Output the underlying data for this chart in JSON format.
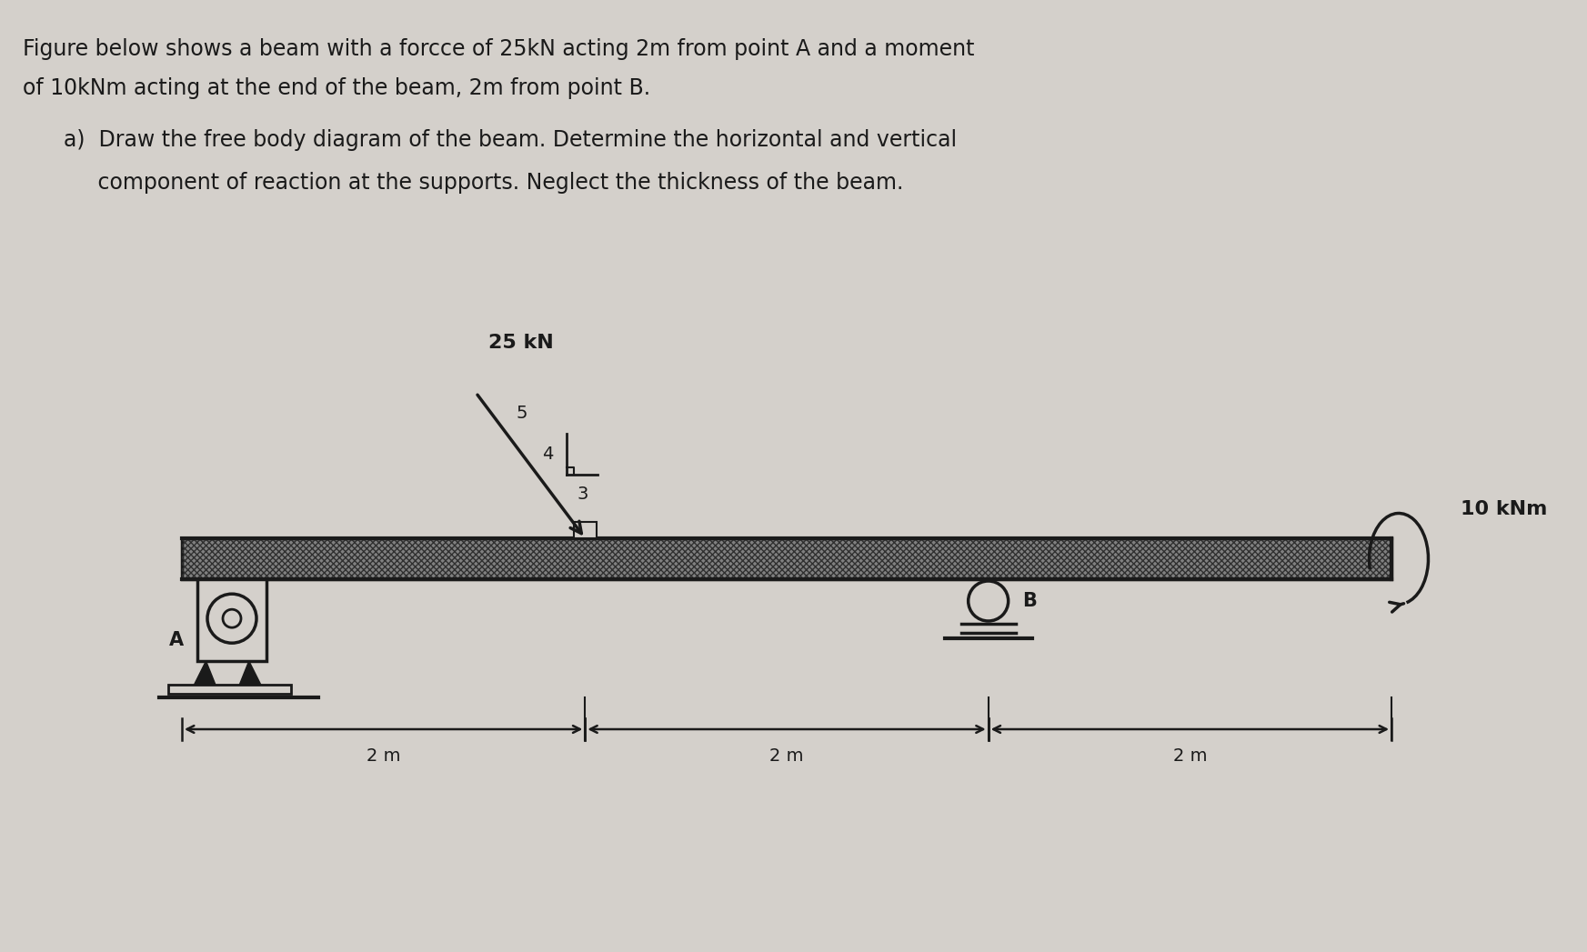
{
  "bg_color": "#d4d0cb",
  "title_line1": "Figure below shows a beam with a forcce of 25kN acting 2m from point A and a moment",
  "title_line2": "of 10kNm acting at the end of the beam, 2m from point B.",
  "q_line1": "a)  Draw the free body diagram of the beam. Determine the horizontal and vertical",
  "q_line2": "     component of reaction at the supports. Neglect the thickness of the beam.",
  "force_label": "25 kN",
  "moment_label": "10 kNm",
  "tri4": "4",
  "tri3": "3",
  "tri5": "5",
  "label_A": "A",
  "label_B": "B",
  "dim1": "2 m",
  "dim2": "2 m",
  "dim3": "2 m",
  "lc": "#1a1a1a",
  "tc": "#1a1a1a",
  "fs_title": 17,
  "fs_q": 17,
  "fs_label": 15,
  "fs_dim": 14,
  "fs_tri": 14
}
